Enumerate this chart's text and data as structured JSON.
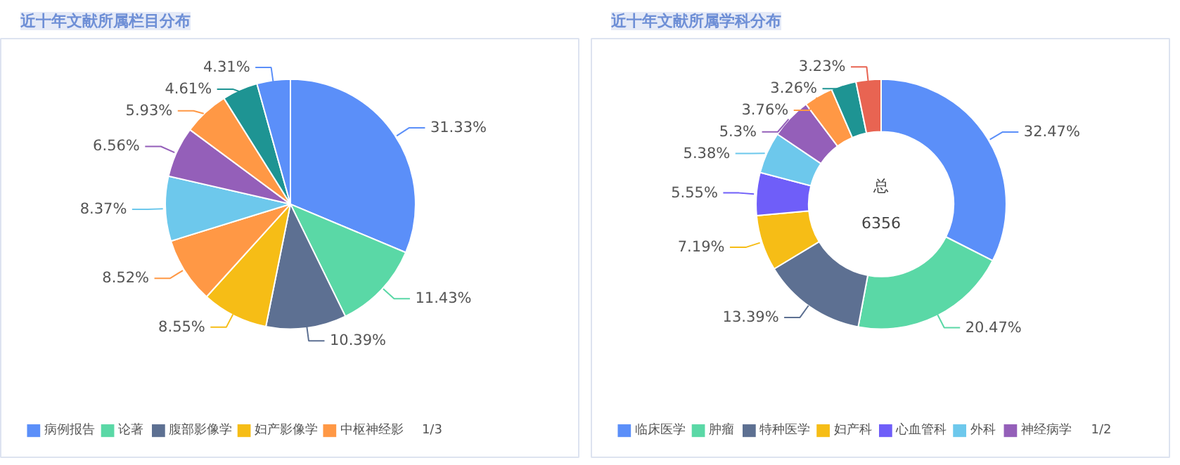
{
  "chart_data": [
    {
      "type": "pie",
      "title": "近十年文献所属栏目分布",
      "categories": [
        "病例报告",
        "论著",
        "腹部影像学",
        "妇产影像学",
        "中枢神经影",
        null,
        null,
        null,
        null,
        null
      ],
      "values": [
        31.33,
        11.43,
        10.39,
        8.55,
        8.52,
        8.37,
        6.56,
        5.93,
        4.61,
        4.31
      ],
      "colors": [
        "#5b8ff9",
        "#5ad8a6",
        "#5d7092",
        "#f6bd16",
        "#ff9845",
        "#6dc8ec",
        "#945fb9",
        "#ff9845",
        "#1e9493",
        "#5b8ff9"
      ],
      "value_labels": [
        "31.33%",
        "11.43%",
        "10.39%",
        "8.55%",
        "8.52%",
        "8.37%",
        "6.56%",
        "5.93%",
        "4.61%",
        "4.31%"
      ],
      "legend": "bottom",
      "annotations": [
        "1/3"
      ]
    },
    {
      "type": "donut",
      "title": "近十年文献所属学科分布",
      "categories": [
        "临床医学",
        "肿瘤",
        "特种医学",
        "妇产科",
        "心血管科",
        "外科",
        "神经病学",
        null,
        null,
        null
      ],
      "values": [
        32.47,
        20.47,
        13.39,
        7.19,
        5.55,
        5.38,
        5.3,
        3.76,
        3.26,
        3.23
      ],
      "colors": [
        "#5b8ff9",
        "#5ad8a6",
        "#5d7092",
        "#f6bd16",
        "#6f5ef9",
        "#6dc8ec",
        "#945fb9",
        "#ff9845",
        "#1e9493",
        "#e86452"
      ],
      "value_labels": [
        "32.47%",
        "20.47%",
        "13.39%",
        "7.19%",
        "5.55%",
        "5.38%",
        "5.3%",
        "3.76%",
        "3.26%",
        "3.23%"
      ],
      "legend": "bottom",
      "annotations": [
        "总",
        "6356",
        "1/2"
      ]
    }
  ]
}
